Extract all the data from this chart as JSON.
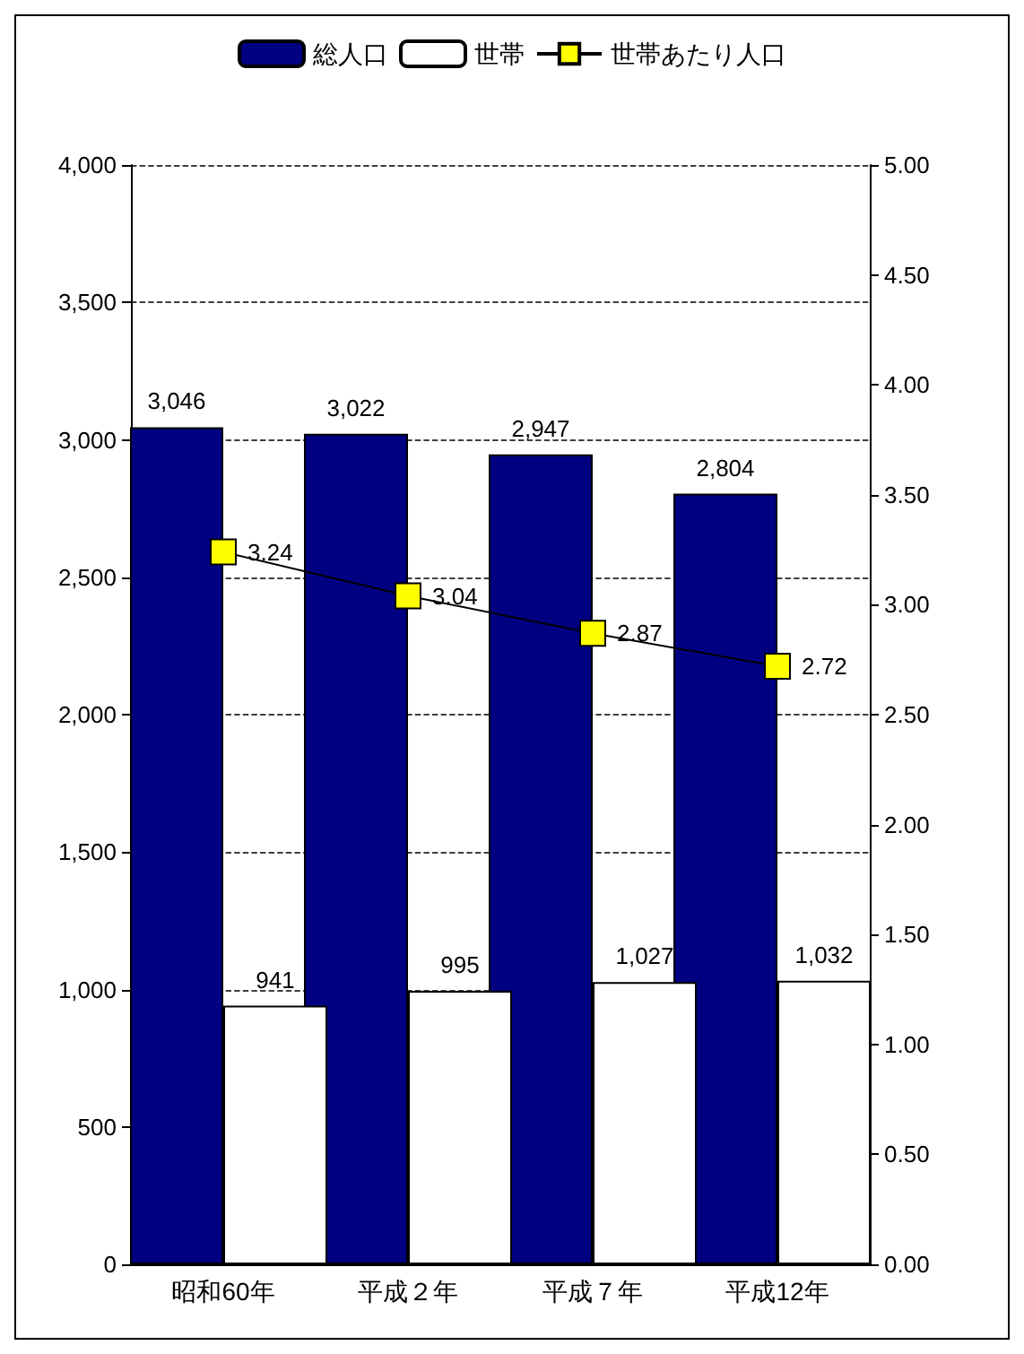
{
  "chart_data": {
    "type": "bar",
    "categories": [
      "昭和60年",
      "平成２年",
      "平成７年",
      "平成12年"
    ],
    "series": [
      {
        "name": "総人口",
        "color": "#000080",
        "values": [
          3046,
          3022,
          2947,
          2804
        ],
        "value_labels": [
          "3,046",
          "3,022",
          "2,947",
          "2,804"
        ]
      },
      {
        "name": "世帯",
        "color": "#ffffff",
        "values": [
          941,
          995,
          1027,
          1032
        ],
        "value_labels": [
          "941",
          "995",
          "1,027",
          "1,032"
        ]
      },
      {
        "name": "世帯あたり人口",
        "type": "line",
        "axis": "y2",
        "color": "#ffff00",
        "values": [
          3.24,
          3.04,
          2.87,
          2.72
        ],
        "value_labels": [
          "3.24",
          "3.04",
          "2.87",
          "2.72"
        ]
      }
    ],
    "ylim": [
      0,
      4000
    ],
    "yticks": [
      {
        "value": 0,
        "label": "0"
      },
      {
        "value": 500,
        "label": "500"
      },
      {
        "value": 1000,
        "label": "1,000"
      },
      {
        "value": 1500,
        "label": "1,500"
      },
      {
        "value": 2000,
        "label": "2,000"
      },
      {
        "value": 2500,
        "label": "2,500"
      },
      {
        "value": 3000,
        "label": "3,000"
      },
      {
        "value": 3500,
        "label": "3,500"
      },
      {
        "value": 4000,
        "label": "4,000"
      }
    ],
    "y2lim": [
      0,
      5
    ],
    "y2ticks": [
      {
        "value": 0,
        "label": "0.00"
      },
      {
        "value": 0.5,
        "label": "0.50"
      },
      {
        "value": 1,
        "label": "1.00"
      },
      {
        "value": 1.5,
        "label": "1.50"
      },
      {
        "value": 2,
        "label": "2.00"
      },
      {
        "value": 2.5,
        "label": "2.50"
      },
      {
        "value": 3,
        "label": "3.00"
      },
      {
        "value": 3.5,
        "label": "3.50"
      },
      {
        "value": 4,
        "label": "4.00"
      },
      {
        "value": 4.5,
        "label": "4.50"
      },
      {
        "value": 5,
        "label": "5.00"
      }
    ],
    "grid": "y",
    "legend": "top",
    "marker": "square",
    "line_style": "solid"
  }
}
